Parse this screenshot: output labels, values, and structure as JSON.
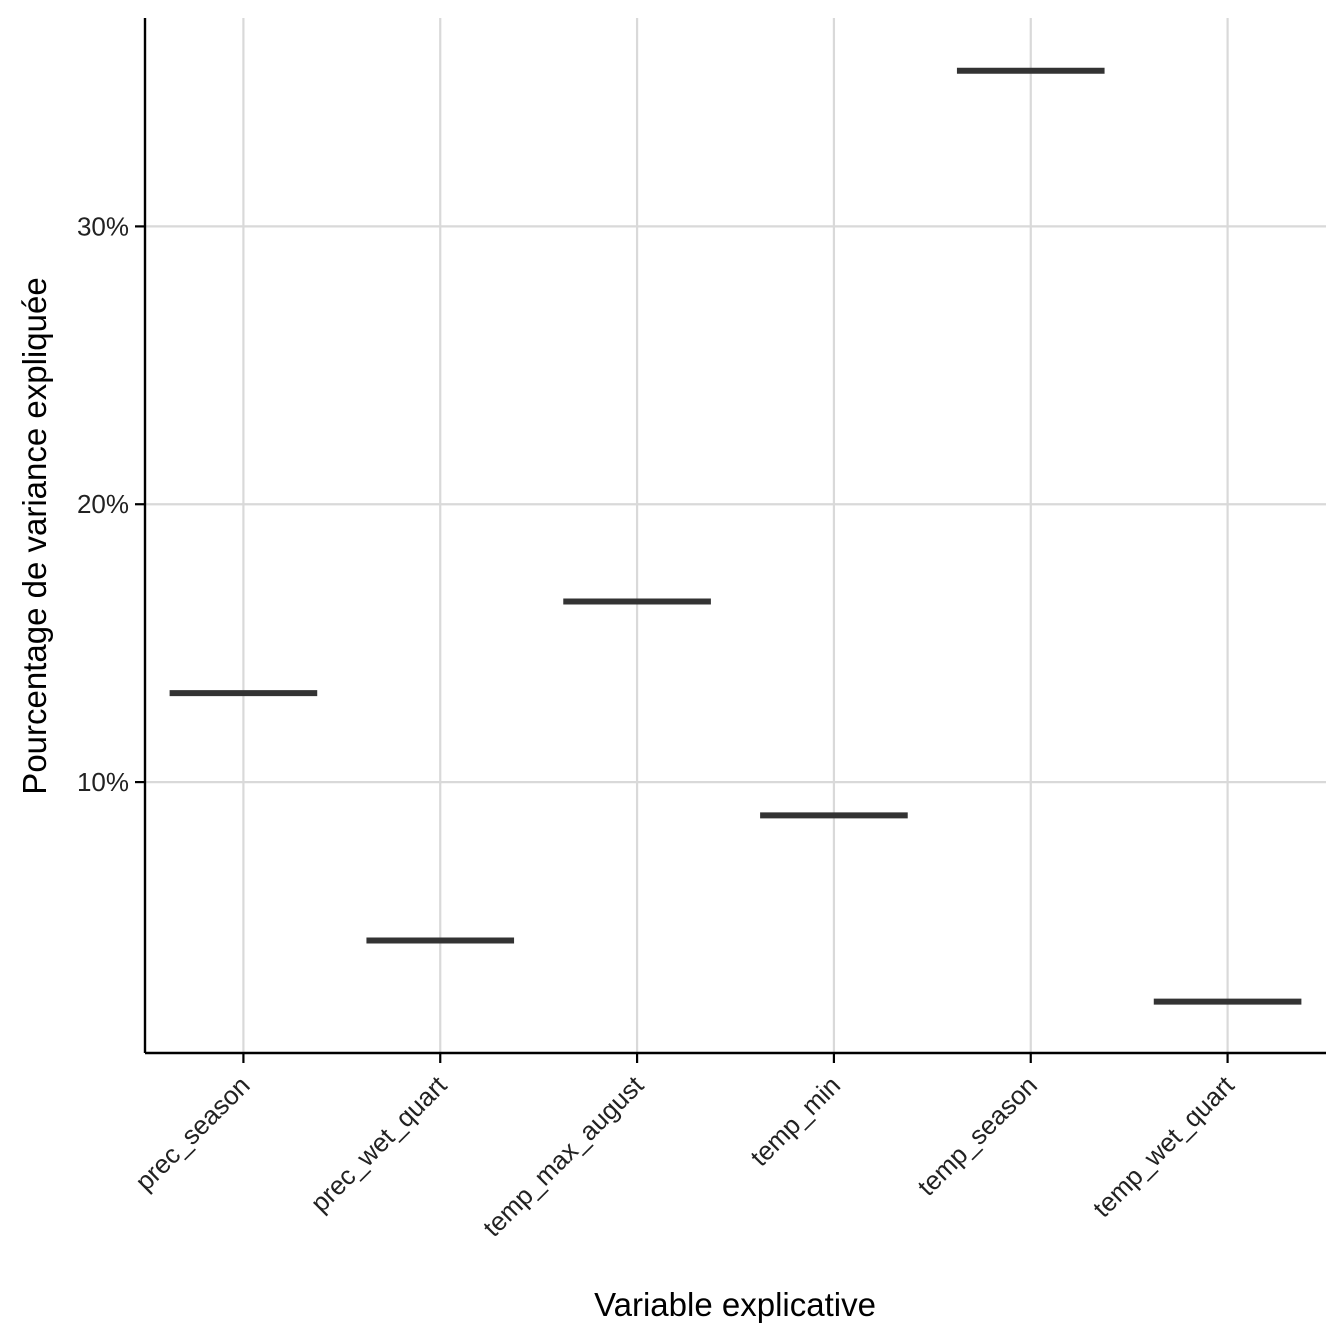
{
  "chart_data": {
    "type": "boxplot",
    "title": "",
    "xlabel": "Variable explicative",
    "ylabel": "Pourcentage de variance expliquée",
    "categories": [
      "prec_season",
      "prec_wet_quart",
      "temp_max_august",
      "temp_min",
      "temp_season",
      "temp_wet_quart"
    ],
    "values": [
      13.2,
      4.3,
      16.5,
      8.8,
      35.6,
      2.1
    ],
    "y_ticks": [
      10,
      20,
      30
    ],
    "y_tick_labels": [
      "10%",
      "20%",
      "30%"
    ],
    "ylim": [
      0.25,
      37.5
    ],
    "grid": true,
    "colors": {
      "median": "#333333",
      "grid": "#d9d9d9",
      "axis": "#000000"
    }
  }
}
